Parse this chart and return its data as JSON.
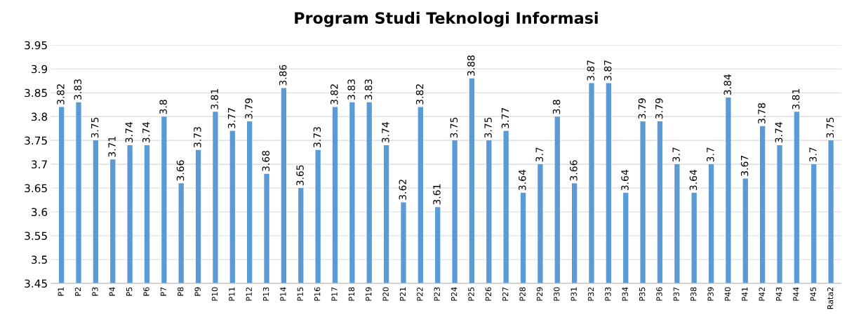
{
  "chart_data": {
    "type": "bar",
    "title": "Program Studi Teknologi Informasi",
    "categories": [
      "P1",
      "P2",
      "P3",
      "P4",
      "P5",
      "P6",
      "P7",
      "P8",
      "P9",
      "P10",
      "P11",
      "P12",
      "P13",
      "P14",
      "P15",
      "P16",
      "P17",
      "P18",
      "P19",
      "P20",
      "P21",
      "P22",
      "P23",
      "P24",
      "P25",
      "P26",
      "P27",
      "P28",
      "P29",
      "P30",
      "P31",
      "P32",
      "P33",
      "P34",
      "P35",
      "P36",
      "P37",
      "P38",
      "P39",
      "P40",
      "P41",
      "P42",
      "P43",
      "P44",
      "P45",
      "Rata2"
    ],
    "values": [
      3.82,
      3.83,
      3.75,
      3.71,
      3.74,
      3.74,
      3.8,
      3.66,
      3.73,
      3.81,
      3.77,
      3.79,
      3.68,
      3.86,
      3.65,
      3.73,
      3.82,
      3.83,
      3.83,
      3.74,
      3.62,
      3.82,
      3.61,
      3.75,
      3.88,
      3.75,
      3.77,
      3.64,
      3.7,
      3.8,
      3.66,
      3.87,
      3.87,
      3.64,
      3.79,
      3.79,
      3.7,
      3.64,
      3.7,
      3.84,
      3.67,
      3.78,
      3.74,
      3.81,
      3.7,
      3.75
    ],
    "color": "#5b9bd5",
    "ylim": [
      3.45,
      3.95
    ],
    "yticks": [
      3.45,
      3.5,
      3.55,
      3.6,
      3.65,
      3.7,
      3.75,
      3.8,
      3.85,
      3.9,
      3.95
    ],
    "grid": "y",
    "data_labels": true
  }
}
